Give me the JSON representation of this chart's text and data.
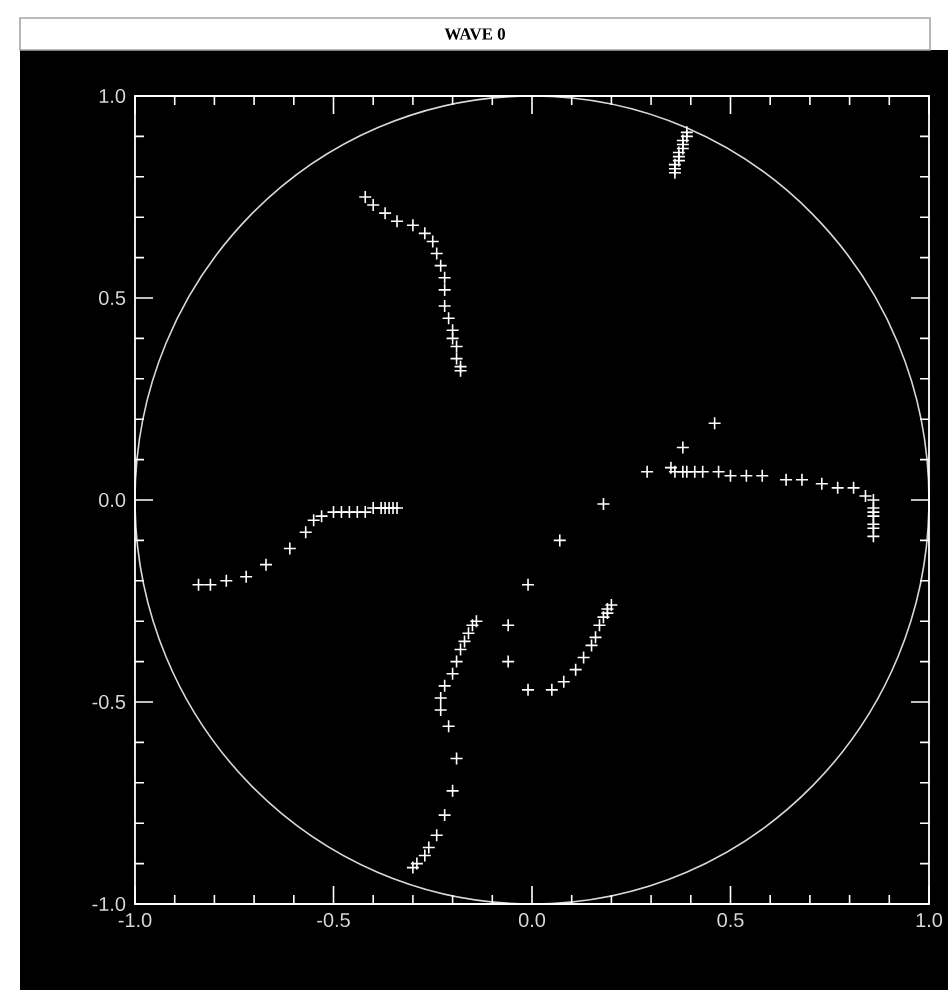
{
  "chart_data": {
    "type": "scatter",
    "title": "WAVE 0",
    "series": [
      {
        "color": "#ffffff",
        "marker": "cross",
        "x": [
          0.39,
          0.39,
          0.38,
          0.38,
          0.38,
          0.37,
          0.37,
          0.37,
          0.36,
          0.36,
          0.36,
          -0.42,
          -0.4,
          -0.37,
          -0.34,
          -0.3,
          -0.27,
          -0.25,
          -0.24,
          -0.23,
          -0.22,
          -0.22,
          -0.22,
          -0.21,
          -0.2,
          -0.2,
          -0.19,
          -0.19,
          -0.18,
          -0.18,
          0.46,
          0.38,
          0.29,
          0.18,
          0.07,
          0.35,
          0.36,
          0.38,
          0.39,
          0.41,
          0.43,
          0.47,
          0.5,
          0.54,
          0.58,
          0.64,
          0.68,
          0.73,
          0.77,
          0.81,
          0.84,
          0.86,
          0.86,
          0.86,
          0.86,
          0.86,
          0.86,
          0.86,
          -0.84,
          -0.81,
          -0.77,
          -0.72,
          -0.67,
          -0.61,
          -0.57,
          -0.55,
          -0.53,
          -0.5,
          -0.48,
          -0.46,
          -0.44,
          -0.42,
          -0.4,
          -0.38,
          -0.37,
          -0.36,
          -0.35,
          -0.34,
          -0.01,
          -0.06,
          -0.06,
          -0.01,
          0.05,
          0.08,
          0.11,
          0.13,
          0.15,
          0.16,
          0.17,
          0.18,
          0.19,
          0.19,
          0.2,
          -0.14,
          -0.15,
          -0.16,
          -0.17,
          -0.18,
          -0.19,
          -0.2,
          -0.22,
          -0.23,
          -0.23,
          -0.21,
          -0.19,
          -0.2,
          -0.22,
          -0.24,
          -0.26,
          -0.27,
          -0.29,
          -0.3
        ],
        "values": [
          0.91,
          0.9,
          0.89,
          0.88,
          0.87,
          0.86,
          0.85,
          0.84,
          0.83,
          0.82,
          0.81,
          0.75,
          0.73,
          0.71,
          0.69,
          0.68,
          0.66,
          0.64,
          0.61,
          0.58,
          0.55,
          0.52,
          0.48,
          0.45,
          0.42,
          0.4,
          0.38,
          0.35,
          0.33,
          0.32,
          0.19,
          0.13,
          0.07,
          -0.01,
          -0.1,
          0.08,
          0.07,
          0.07,
          0.07,
          0.07,
          0.07,
          0.07,
          0.06,
          0.06,
          0.06,
          0.05,
          0.05,
          0.04,
          0.03,
          0.03,
          0.01,
          0.0,
          -0.02,
          -0.03,
          -0.04,
          -0.06,
          -0.07,
          -0.09,
          -0.21,
          -0.21,
          -0.2,
          -0.19,
          -0.16,
          -0.12,
          -0.08,
          -0.05,
          -0.04,
          -0.03,
          -0.03,
          -0.03,
          -0.03,
          -0.03,
          -0.02,
          -0.02,
          -0.02,
          -0.02,
          -0.02,
          -0.02,
          -0.21,
          -0.31,
          -0.4,
          -0.47,
          -0.47,
          -0.45,
          -0.42,
          -0.39,
          -0.36,
          -0.34,
          -0.31,
          -0.29,
          -0.28,
          -0.27,
          -0.26,
          -0.3,
          -0.31,
          -0.33,
          -0.35,
          -0.37,
          -0.4,
          -0.43,
          -0.46,
          -0.49,
          -0.52,
          -0.56,
          -0.64,
          -0.72,
          -0.78,
          -0.83,
          -0.86,
          -0.88,
          -0.9,
          -0.91
        ]
      }
    ],
    "xlim": [
      -1,
      1
    ],
    "ylim": [
      -1,
      1
    ],
    "xticks": [
      {
        "value": -1,
        "label": "-1.0"
      },
      {
        "value": -0.5,
        "label": "-0.5"
      },
      {
        "value": 0,
        "label": "0.0"
      },
      {
        "value": 0.5,
        "label": "0.5"
      },
      {
        "value": 1,
        "label": "1.0"
      }
    ],
    "yticks": [
      {
        "value": -1,
        "label": "-1.0"
      },
      {
        "value": -0.5,
        "label": "-0.5"
      },
      {
        "value": 0,
        "label": "0.0"
      },
      {
        "value": 0.5,
        "label": "0.5"
      },
      {
        "value": 1,
        "label": "1.0"
      }
    ]
  }
}
